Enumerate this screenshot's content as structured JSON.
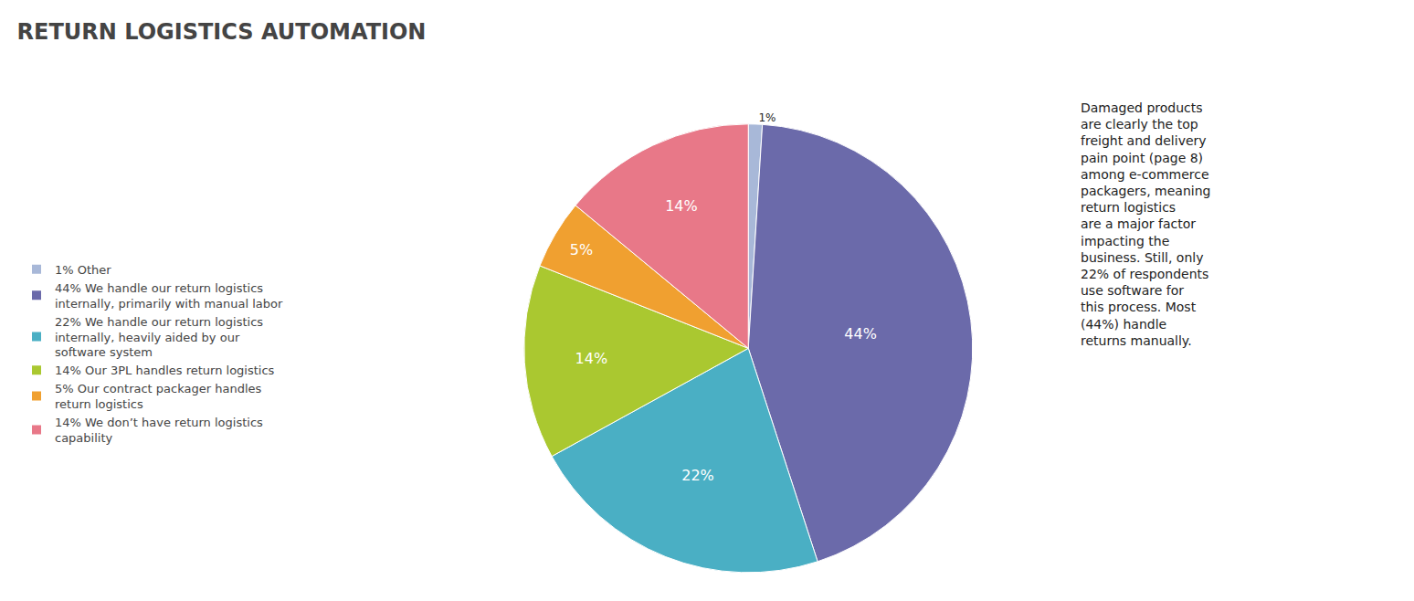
{
  "chart_data": {
    "type": "pie",
    "title": "RETURN LOGISTICS AUTOMATION",
    "categories": [
      "1% Other",
      "44% We handle our return logistics\ninternally, primarily with manual labor",
      "22% We handle our return logistics\ninternally, heavily aided by our\nsoftware system",
      "14% Our 3PL handles return logistics",
      "5% Our contract packager handles\nreturn logistics",
      "14% We don’t have return logistics\ncapability"
    ],
    "values": [
      1,
      44,
      22,
      14,
      5,
      14
    ],
    "value_labels": [
      "1%",
      "44%",
      "22%",
      "14%",
      "5%",
      "14%"
    ],
    "colors": [
      "#a8b8d8",
      "#6b6aaa",
      "#4aafc4",
      "#aac830",
      "#f0a030",
      "#e87888"
    ],
    "data_labels": true,
    "legend": "left",
    "annotation": "Damaged products\nare clearly the top\nfreight and delivery\npain point (page 8)\namong e-commerce\npackagers, meaning\nreturn logistics\nare a major factor\nimpacting the\nbusiness. Still, only\n22% of respondents\nuse software for\nthis process. Most\n(44%) handle\nreturns manually."
  }
}
